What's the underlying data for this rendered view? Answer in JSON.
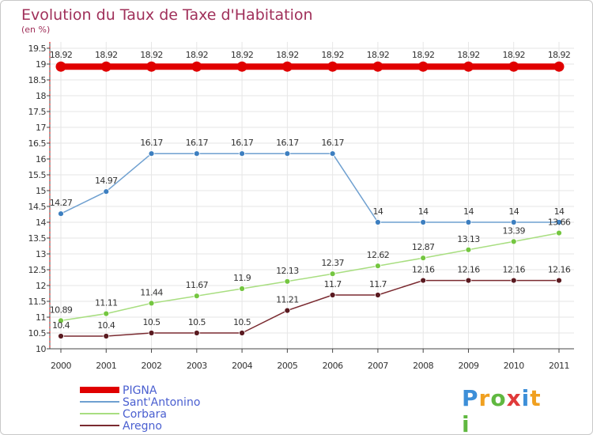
{
  "chart_data": {
    "type": "line",
    "title": "Evolution du Taux de Taxe d'Habitation",
    "subtitle": "(en %)",
    "x": [
      "2000",
      "2001",
      "2002",
      "2003",
      "2004",
      "2005",
      "2006",
      "2007",
      "2008",
      "2009",
      "2010",
      "2011"
    ],
    "y_ticks": [
      "10",
      "10.5",
      "11",
      "11.5",
      "12",
      "12.5",
      "13",
      "13.5",
      "14",
      "14.5",
      "15",
      "15.5",
      "16",
      "16.5",
      "17",
      "17.5",
      "18",
      "18.5",
      "19",
      "19.5"
    ],
    "ylim": [
      10,
      19.5
    ],
    "grid": true,
    "legend_position": "bottom-left",
    "series": [
      {
        "name": "PIGNA",
        "color": "#e00000",
        "values": [
          18.92,
          18.92,
          18.92,
          18.92,
          18.92,
          18.92,
          18.92,
          18.92,
          18.92,
          18.92,
          18.92,
          18.92
        ],
        "labels": [
          "18.92",
          "18.92",
          "18.92",
          "18.92",
          "18.92",
          "18.92",
          "18.92",
          "18.92",
          "18.92",
          "18.92",
          "18.92",
          "18.92"
        ]
      },
      {
        "name": "Sant'Antonino",
        "color": "#6fa0d0",
        "marker_color": "#3d7fc0",
        "values": [
          14.27,
          14.97,
          16.17,
          16.17,
          16.17,
          16.17,
          16.17,
          14,
          14,
          14,
          14,
          14
        ],
        "labels": [
          "14.27",
          "14.97",
          "16.17",
          "16.17",
          "16.17",
          "16.17",
          "16.17",
          "14",
          "14",
          "14",
          "14",
          "14"
        ]
      },
      {
        "name": "Corbara",
        "color": "#a8de80",
        "marker_color": "#74c640",
        "values": [
          10.89,
          11.11,
          11.44,
          11.67,
          11.9,
          12.13,
          12.37,
          12.62,
          12.87,
          13.13,
          13.39,
          13.66
        ],
        "labels": [
          "10.89",
          "11.11",
          "11.44",
          "11.67",
          "11.9",
          "12.13",
          "12.37",
          "12.62",
          "12.87",
          "13.13",
          "13.39",
          "13.66"
        ]
      },
      {
        "name": "Aregno",
        "color": "#7a2a30",
        "marker_color": "#5a1a20",
        "values": [
          10.4,
          10.4,
          10.5,
          10.5,
          10.5,
          11.21,
          11.7,
          11.7,
          12.16,
          12.16,
          12.16,
          12.16
        ],
        "labels": [
          "10.4",
          "10.4",
          "10.5",
          "10.5",
          "10.5",
          "11.21",
          "11.7",
          "11.7",
          "12.16",
          "12.16",
          "12.16",
          "12.16"
        ]
      }
    ]
  },
  "logo": {
    "letters": [
      "P",
      "r",
      "o",
      "x",
      "i",
      "t",
      "i"
    ],
    "colors": [
      "#3d8fd8",
      "#f0a020",
      "#60b840",
      "#e03a3a",
      "#3d8fd8",
      "#f0a020",
      "#60b840"
    ]
  }
}
